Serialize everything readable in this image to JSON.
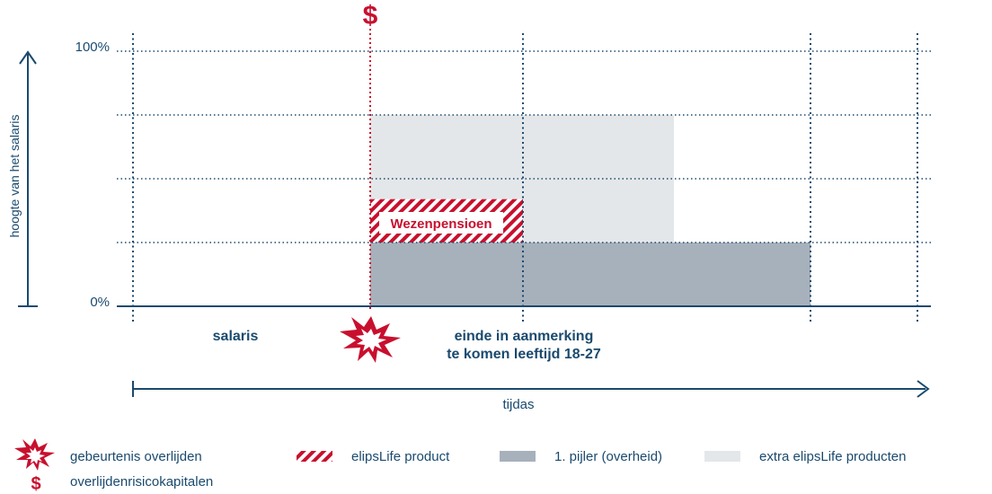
{
  "chart_data": {
    "type": "area",
    "ylabel": "hoogte van het salaris",
    "xlabel": "tijdas",
    "y_ticks": [
      "100%",
      "0%"
    ],
    "phase_labels": {
      "salaris": "salaris",
      "einde_line1": "einde in aanmerking",
      "einde_line2": "te komen leeftijd 18-27"
    },
    "event_marker_symbol": "$",
    "blocks": [
      {
        "name": "extra elipsLife producten",
        "phase": "bereavement-to-end-extra",
        "from": 0.25,
        "to": 0.75
      },
      {
        "name": "1. pijler (overheid)",
        "phase": "bereavement-to-end-of-orphan",
        "from": 0.0,
        "to": 0.25
      },
      {
        "name": "elipsLife product",
        "label": "Wezenpensioen",
        "phase": "bereavement-to-age-limit",
        "from": 0.25,
        "to": 0.42
      }
    ],
    "grid": true,
    "legend_position": "bottom"
  },
  "legend": {
    "death_event": "gebeurtenis overlijden",
    "death_capital": "overlijdenrisicokapitalen",
    "elipslife": "elipsLife product",
    "first_pillar": "1. pijler (overheid)",
    "extra": "extra elipsLife producten"
  },
  "colors": {
    "navy": "#1a4a6e",
    "red": "#c8102e",
    "gray": "#a7b1bb",
    "light_gray": "#e4e7ea"
  }
}
